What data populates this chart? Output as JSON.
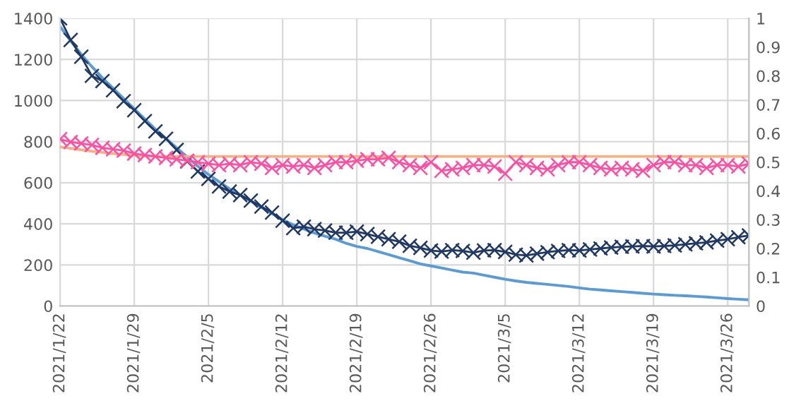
{
  "chart_data": {
    "type": "line",
    "x": [
      "2021-01-22",
      "2021-01-23",
      "2021-01-24",
      "2021-01-25",
      "2021-01-26",
      "2021-01-27",
      "2021-01-28",
      "2021-01-29",
      "2021-01-30",
      "2021-01-31",
      "2021-02-01",
      "2021-02-02",
      "2021-02-03",
      "2021-02-04",
      "2021-02-05",
      "2021-02-06",
      "2021-02-07",
      "2021-02-08",
      "2021-02-09",
      "2021-02-10",
      "2021-02-11",
      "2021-02-12",
      "2021-02-13",
      "2021-02-14",
      "2021-02-15",
      "2021-02-16",
      "2021-02-17",
      "2021-02-18",
      "2021-02-19",
      "2021-02-20",
      "2021-02-21",
      "2021-02-22",
      "2021-02-23",
      "2021-02-24",
      "2021-02-25",
      "2021-02-26",
      "2021-02-27",
      "2021-02-28",
      "2021-03-01",
      "2021-03-02",
      "2021-03-03",
      "2021-03-04",
      "2021-03-05",
      "2021-03-06",
      "2021-03-07",
      "2021-03-08",
      "2021-03-09",
      "2021-03-10",
      "2021-03-11",
      "2021-03-12",
      "2021-03-13",
      "2021-03-14",
      "2021-03-15",
      "2021-03-16",
      "2021-03-17",
      "2021-03-18",
      "2021-03-19",
      "2021-03-20",
      "2021-03-21",
      "2021-03-22",
      "2021-03-23",
      "2021-03-24",
      "2021-03-25",
      "2021-03-26",
      "2021-03-27",
      "2021-03-28"
    ],
    "series": [
      {
        "color": "#5b9bd5",
        "marker": "none",
        "values": [
          1360,
          1290,
          1225,
          1165,
          1110,
          1060,
          1010,
          960,
          910,
          860,
          815,
          770,
          725,
          680,
          640,
          605,
          570,
          540,
          510,
          480,
          450,
          420,
          395,
          375,
          355,
          340,
          325,
          305,
          290,
          280,
          265,
          250,
          235,
          220,
          205,
          195,
          185,
          175,
          165,
          160,
          150,
          140,
          130,
          122,
          115,
          110,
          105,
          100,
          95,
          88,
          82,
          78,
          74,
          70,
          66,
          62,
          58,
          55,
          52,
          50,
          47,
          44,
          40,
          36,
          33,
          30
        ]
      },
      {
        "color": "#f4b183",
        "marker": "none",
        "axis": "y2",
        "values": [
          0.553,
          0.548,
          0.543,
          0.538,
          0.534,
          0.53,
          0.527,
          0.524,
          0.522,
          0.52,
          0.52,
          0.52,
          0.52,
          0.52,
          0.52,
          0.52,
          0.52,
          0.52,
          0.52,
          0.52,
          0.52,
          0.52,
          0.52,
          0.52,
          0.52,
          0.52,
          0.52,
          0.52,
          0.52,
          0.52,
          0.52,
          0.52,
          0.52,
          0.52,
          0.52,
          0.52,
          0.52,
          0.52,
          0.52,
          0.52,
          0.52,
          0.52,
          0.52,
          0.52,
          0.52,
          0.52,
          0.52,
          0.52,
          0.52,
          0.52,
          0.52,
          0.52,
          0.52,
          0.52,
          0.52,
          0.52,
          0.52,
          0.52,
          0.52,
          0.52,
          0.52,
          0.52,
          0.52,
          0.52,
          0.52,
          0.52
        ]
      },
      {
        "color": "#ff4fa3",
        "marker": "cross",
        "axis": "y2",
        "values": [
          0.58,
          0.57,
          0.565,
          0.56,
          0.55,
          0.545,
          0.54,
          0.53,
          0.525,
          0.52,
          0.515,
          0.51,
          0.505,
          0.5,
          0.495,
          0.49,
          0.495,
          0.49,
          0.5,
          0.495,
          0.48,
          0.49,
          0.485,
          0.49,
          0.48,
          0.49,
          0.5,
          0.5,
          0.505,
          0.51,
          0.51,
          0.515,
          0.5,
          0.49,
          0.48,
          0.5,
          0.47,
          0.475,
          0.48,
          0.49,
          0.49,
          0.485,
          0.46,
          0.5,
          0.49,
          0.48,
          0.475,
          0.49,
          0.5,
          0.5,
          0.49,
          0.48,
          0.475,
          0.48,
          0.475,
          0.47,
          0.49,
          0.5,
          0.5,
          0.49,
          0.49,
          0.48,
          0.49,
          0.49,
          0.485,
          0.495
        ]
      },
      {
        "color": "#1f3864",
        "marker": "cross",
        "values": [
          1400,
          1295,
          1213,
          1120,
          1095,
          1050,
          997,
          953,
          900,
          850,
          814,
          760,
          704,
          655,
          619,
          582,
          557,
          540,
          513,
          484,
          455,
          415,
          379,
          386,
          374,
          367,
          357,
          357,
          362,
          350,
          337,
          325,
          313,
          293,
          283,
          270,
          265,
          272,
          268,
          260,
          270,
          272,
          263,
          250,
          246,
          255,
          262,
          268,
          272,
          270,
          275,
          280,
          285,
          288,
          290,
          292,
          290,
          292,
          295,
          300,
          305,
          310,
          318,
          325,
          335,
          343
        ]
      }
    ],
    "xlim": [
      "2021-01-22",
      "2021-03-28"
    ],
    "xticks": [
      {
        "value": "2021-01-22",
        "label": "2021/1/22"
      },
      {
        "value": "2021-01-29",
        "label": "2021/1/29"
      },
      {
        "value": "2021-02-05",
        "label": "2021/2/5"
      },
      {
        "value": "2021-02-12",
        "label": "2021/2/12"
      },
      {
        "value": "2021-02-19",
        "label": "2021/2/19"
      },
      {
        "value": "2021-02-26",
        "label": "2021/2/26"
      },
      {
        "value": "2021-03-05",
        "label": "2021/3/5"
      },
      {
        "value": "2021-03-12",
        "label": "2021/3/12"
      },
      {
        "value": "2021-03-19",
        "label": "2021/3/19"
      },
      {
        "value": "2021-03-26",
        "label": "2021/3/26"
      }
    ],
    "ylim": [
      0,
      1400
    ],
    "yticks": [
      0,
      200,
      400,
      600,
      800,
      1000,
      1200,
      1400
    ],
    "y2lim": [
      0,
      1
    ],
    "y2ticks": [
      0,
      0.1,
      0.2,
      0.3,
      0.4,
      0.5,
      0.6,
      0.7,
      0.8,
      0.9,
      1
    ],
    "grid": true
  }
}
